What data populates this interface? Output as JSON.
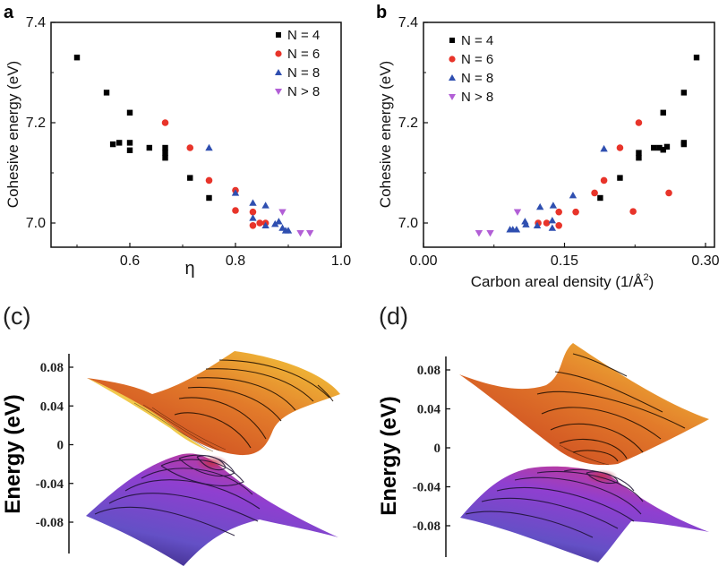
{
  "chart_data": [
    {
      "id": "a",
      "type": "scatter",
      "panel_label": "a",
      "title": "",
      "xlabel": "η",
      "ylabel": "Cohesive energy (eV)",
      "xlim": [
        0.45,
        1.0
      ],
      "ylim": [
        6.95,
        7.4
      ],
      "xticks": [
        0.6,
        0.8,
        1.0
      ],
      "xtick_labels": [
        "0.6",
        "0.8",
        "1.0"
      ],
      "yticks": [
        7.0,
        7.2,
        7.4
      ],
      "ytick_labels": [
        "7.0",
        "7.2",
        "7.4"
      ],
      "grid": false,
      "legend_position": "top-right",
      "series": [
        {
          "name": "N = 4",
          "marker": "square",
          "color": "#000000",
          "points": [
            [
              0.5,
              7.33
            ],
            [
              0.556,
              7.26
            ],
            [
              0.6,
              7.22
            ],
            [
              0.568,
              7.157
            ],
            [
              0.58,
              7.16
            ],
            [
              0.6,
              7.16
            ],
            [
              0.6,
              7.145
            ],
            [
              0.637,
              7.15
            ],
            [
              0.667,
              7.15
            ],
            [
              0.667,
              7.14
            ],
            [
              0.667,
              7.13
            ],
            [
              0.714,
              7.09
            ],
            [
              0.75,
              7.05
            ]
          ]
        },
        {
          "name": "N = 6",
          "marker": "circle",
          "color": "#e8342a",
          "points": [
            [
              0.667,
              7.2
            ],
            [
              0.714,
              7.15
            ],
            [
              0.75,
              7.085
            ],
            [
              0.8,
              7.065
            ],
            [
              0.8,
              7.025
            ],
            [
              0.833,
              7.022
            ],
            [
              0.833,
              6.995
            ],
            [
              0.846,
              7.0
            ],
            [
              0.857,
              7.0
            ]
          ]
        },
        {
          "name": "N = 8",
          "marker": "triangle-up",
          "color": "#2f4fb0",
          "points": [
            [
              0.75,
              7.15
            ],
            [
              0.8,
              7.06
            ],
            [
              0.833,
              7.04
            ],
            [
              0.857,
              7.035
            ],
            [
              0.833,
              7.01
            ],
            [
              0.857,
              6.995
            ],
            [
              0.875,
              6.998
            ],
            [
              0.882,
              7.003
            ],
            [
              0.889,
              6.99
            ],
            [
              0.895,
              6.985
            ],
            [
              0.9,
              6.985
            ]
          ]
        },
        {
          "name": "N > 8",
          "marker": "triangle-down",
          "color": "#b25fd6",
          "points": [
            [
              0.889,
              7.022
            ],
            [
              0.923,
              6.98
            ],
            [
              0.941,
              6.98
            ]
          ]
        }
      ]
    },
    {
      "id": "b",
      "type": "scatter",
      "panel_label": "b",
      "title": "",
      "xlabel": "Carbon areal density (1/Å",
      "xlabel_sup": "2",
      "xlabel_end": ")",
      "ylabel": "Cohesive energy (eV)",
      "xlim": [
        0.0,
        0.31
      ],
      "ylim": [
        6.95,
        7.4
      ],
      "xticks": [
        0.0,
        0.15,
        0.3
      ],
      "xtick_labels": [
        "0.00",
        "0.15",
        "0.30"
      ],
      "yticks": [
        7.0,
        7.2,
        7.4
      ],
      "ytick_labels": [
        "7.0",
        "7.2",
        "7.4"
      ],
      "grid": false,
      "legend_position": "top-left",
      "series": [
        {
          "name": "N = 4",
          "marker": "square",
          "color": "#000000",
          "points": [
            [
              0.2905,
              7.33
            ],
            [
              0.277,
              7.26
            ],
            [
              0.255,
              7.22
            ],
            [
              0.277,
              7.16
            ],
            [
              0.277,
              7.157
            ],
            [
              0.259,
              7.152
            ],
            [
              0.255,
              7.146
            ],
            [
              0.251,
              7.15
            ],
            [
              0.245,
              7.15
            ],
            [
              0.229,
              7.14
            ],
            [
              0.229,
              7.13
            ],
            [
              0.209,
              7.09
            ],
            [
              0.188,
              7.05
            ]
          ]
        },
        {
          "name": "N = 6",
          "marker": "circle",
          "color": "#e8342a",
          "points": [
            [
              0.229,
              7.2
            ],
            [
              0.209,
              7.15
            ],
            [
              0.192,
              7.085
            ],
            [
              0.182,
              7.06
            ],
            [
              0.261,
              7.06
            ],
            [
              0.223,
              7.023
            ],
            [
              0.162,
              7.022
            ],
            [
              0.144,
              7.022
            ],
            [
              0.122,
              7.0
            ],
            [
              0.131,
              7.0
            ],
            [
              0.144,
              6.995
            ]
          ]
        },
        {
          "name": "N = 8",
          "marker": "triangle-up",
          "color": "#2f4fb0",
          "points": [
            [
              0.192,
              7.148
            ],
            [
              0.159,
              7.055
            ],
            [
              0.138,
              7.035
            ],
            [
              0.124,
              7.032
            ],
            [
              0.137,
              7.005
            ],
            [
              0.108,
              7.003
            ],
            [
              0.109,
              6.997
            ],
            [
              0.121,
              6.995
            ],
            [
              0.137,
              6.99
            ],
            [
              0.099,
              6.987
            ],
            [
              0.092,
              6.987
            ],
            [
              0.095,
              6.987
            ]
          ]
        },
        {
          "name": "N > 8",
          "marker": "triangle-down",
          "color": "#b25fd6",
          "points": [
            [
              0.1,
              7.022
            ],
            [
              0.059,
              6.98
            ],
            [
              0.071,
              6.98
            ]
          ]
        }
      ]
    },
    {
      "id": "c",
      "type": "surface",
      "panel_label": "(c)",
      "ylabel": "Energy (eV)",
      "ylim": [
        -0.1,
        0.1
      ],
      "yticks": [
        0.08,
        0.04,
        0,
        -0.04,
        -0.08
      ],
      "ytick_labels": [
        "0.08",
        "0.04",
        "0",
        "-0.04",
        "-0.08"
      ],
      "upper_band_colors": [
        "#c9401f",
        "#e07a28",
        "#f2c23a"
      ],
      "lower_band_colors": [
        "#c2379b",
        "#6a4fc9",
        "#3e2a8c"
      ]
    },
    {
      "id": "d",
      "type": "surface",
      "panel_label": "(d)",
      "ylabel": "Energy (eV)",
      "ylim": [
        -0.1,
        0.1
      ],
      "yticks": [
        0.08,
        0.04,
        0,
        -0.04,
        -0.08
      ],
      "ytick_labels": [
        "0.08",
        "0.04",
        "0",
        "-0.04",
        "-0.08"
      ],
      "upper_band_colors": [
        "#c9401f",
        "#e07a28",
        "#f2c23a"
      ],
      "lower_band_colors": [
        "#c2379b",
        "#6a4fc9",
        "#3e2a8c"
      ]
    }
  ]
}
